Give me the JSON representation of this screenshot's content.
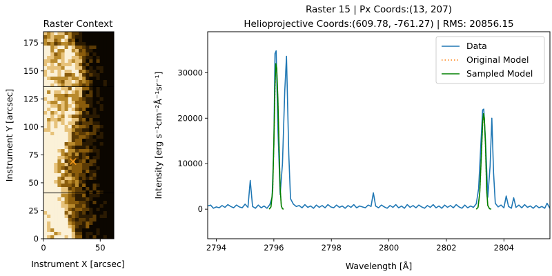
{
  "chart_data": [
    {
      "type": "heatmap",
      "title": "Raster Context",
      "xlabel": "Instrument X [arcsec]",
      "ylabel": "Instrument Y [arcsec]",
      "xlim": [
        0,
        62
      ],
      "ylim": [
        0,
        185
      ],
      "xticks": [
        0,
        50
      ],
      "yticks": [
        0,
        25,
        50,
        75,
        100,
        125,
        150,
        175
      ],
      "colormap": [
        "#0b0600",
        "#2a1a02",
        "#5a3a05",
        "#8a5c0c",
        "#b98a2c",
        "#e7c27a",
        "#fbf1d8"
      ],
      "marker": {
        "symbol": "x",
        "color": "#ff9f1c",
        "x": 26,
        "y": 69
      },
      "grid": false
    },
    {
      "type": "line",
      "title_lines": [
        "Raster 15 | Px Coords:(13, 207)",
        "Helioprojective Coords:(609.78, -761.27) | RMS: 20856.15"
      ],
      "xlabel": "Wavelength [Å]",
      "ylabel": "Intensity [erg s⁻¹cm⁻²Å⁻¹sr⁻¹]",
      "xlim": [
        2793.7,
        2805.6
      ],
      "ylim": [
        -6500,
        39000
      ],
      "xticks": [
        2794,
        2796,
        2798,
        2800,
        2802,
        2804
      ],
      "yticks": [
        0,
        10000,
        20000,
        30000
      ],
      "legend_position": "top-right",
      "grid": false,
      "series": [
        {
          "name": "Data",
          "color": "#1f77b4",
          "style": "solid",
          "points": [
            [
              2793.7,
              700
            ],
            [
              2793.8,
              900
            ],
            [
              2793.9,
              200
            ],
            [
              2794.0,
              500
            ],
            [
              2794.1,
              300
            ],
            [
              2794.2,
              800
            ],
            [
              2794.3,
              400
            ],
            [
              2794.4,
              1000
            ],
            [
              2794.5,
              600
            ],
            [
              2794.6,
              300
            ],
            [
              2794.7,
              900
            ],
            [
              2794.8,
              500
            ],
            [
              2794.9,
              300
            ],
            [
              2795.0,
              1100
            ],
            [
              2795.1,
              400
            ],
            [
              2795.18,
              6300
            ],
            [
              2795.26,
              600
            ],
            [
              2795.36,
              200
            ],
            [
              2795.46,
              900
            ],
            [
              2795.56,
              300
            ],
            [
              2795.66,
              700
            ],
            [
              2795.76,
              200
            ],
            [
              2795.86,
              1000
            ],
            [
              2795.94,
              2600
            ],
            [
              2796.0,
              14000
            ],
            [
              2796.04,
              34200
            ],
            [
              2796.08,
              34800
            ],
            [
              2796.14,
              18000
            ],
            [
              2796.22,
              3200
            ],
            [
              2796.3,
              10000
            ],
            [
              2796.38,
              26000
            ],
            [
              2796.44,
              33600
            ],
            [
              2796.52,
              12000
            ],
            [
              2796.58,
              2300
            ],
            [
              2796.68,
              1100
            ],
            [
              2796.78,
              600
            ],
            [
              2796.88,
              800
            ],
            [
              2796.98,
              300
            ],
            [
              2797.08,
              1000
            ],
            [
              2797.18,
              400
            ],
            [
              2797.28,
              700
            ],
            [
              2797.38,
              200
            ],
            [
              2797.48,
              900
            ],
            [
              2797.58,
              400
            ],
            [
              2797.68,
              800
            ],
            [
              2797.78,
              300
            ],
            [
              2797.88,
              1000
            ],
            [
              2797.98,
              500
            ],
            [
              2798.08,
              300
            ],
            [
              2798.18,
              900
            ],
            [
              2798.28,
              400
            ],
            [
              2798.38,
              700
            ],
            [
              2798.48,
              200
            ],
            [
              2798.58,
              800
            ],
            [
              2798.68,
              400
            ],
            [
              2798.78,
              1000
            ],
            [
              2798.88,
              300
            ],
            [
              2798.98,
              700
            ],
            [
              2799.08,
              500
            ],
            [
              2799.18,
              300
            ],
            [
              2799.28,
              900
            ],
            [
              2799.38,
              600
            ],
            [
              2799.46,
              3600
            ],
            [
              2799.54,
              700
            ],
            [
              2799.64,
              300
            ],
            [
              2799.74,
              900
            ],
            [
              2799.84,
              500
            ],
            [
              2799.94,
              200
            ],
            [
              2800.04,
              800
            ],
            [
              2800.14,
              400
            ],
            [
              2800.24,
              1000
            ],
            [
              2800.34,
              300
            ],
            [
              2800.44,
              700
            ],
            [
              2800.54,
              200
            ],
            [
              2800.64,
              1000
            ],
            [
              2800.74,
              400
            ],
            [
              2800.84,
              800
            ],
            [
              2800.94,
              300
            ],
            [
              2801.04,
              900
            ],
            [
              2801.14,
              500
            ],
            [
              2801.24,
              200
            ],
            [
              2801.34,
              800
            ],
            [
              2801.44,
              400
            ],
            [
              2801.54,
              1000
            ],
            [
              2801.64,
              300
            ],
            [
              2801.74,
              700
            ],
            [
              2801.84,
              200
            ],
            [
              2801.94,
              900
            ],
            [
              2802.04,
              400
            ],
            [
              2802.14,
              800
            ],
            [
              2802.24,
              300
            ],
            [
              2802.34,
              1000
            ],
            [
              2802.44,
              500
            ],
            [
              2802.54,
              200
            ],
            [
              2802.64,
              900
            ],
            [
              2802.74,
              300
            ],
            [
              2802.84,
              700
            ],
            [
              2802.94,
              400
            ],
            [
              2803.04,
              1200
            ],
            [
              2803.12,
              4500
            ],
            [
              2803.2,
              14500
            ],
            [
              2803.26,
              21800
            ],
            [
              2803.3,
              22000
            ],
            [
              2803.36,
              15000
            ],
            [
              2803.44,
              2600
            ],
            [
              2803.52,
              9500
            ],
            [
              2803.58,
              20000
            ],
            [
              2803.64,
              8000
            ],
            [
              2803.7,
              1300
            ],
            [
              2803.8,
              500
            ],
            [
              2803.9,
              900
            ],
            [
              2804.0,
              300
            ],
            [
              2804.08,
              2900
            ],
            [
              2804.16,
              600
            ],
            [
              2804.26,
              200
            ],
            [
              2804.34,
              2500
            ],
            [
              2804.42,
              400
            ],
            [
              2804.52,
              900
            ],
            [
              2804.62,
              300
            ],
            [
              2804.72,
              1000
            ],
            [
              2804.82,
              400
            ],
            [
              2804.92,
              700
            ],
            [
              2805.02,
              200
            ],
            [
              2805.12,
              800
            ],
            [
              2805.22,
              300
            ],
            [
              2805.32,
              600
            ],
            [
              2805.42,
              200
            ],
            [
              2805.5,
              1300
            ],
            [
              2805.6,
              200
            ]
          ]
        },
        {
          "name": "Original Model",
          "color": "#ff7f0e",
          "style": "dotted",
          "points": [
            [
              2795.84,
              0
            ],
            [
              2795.9,
              500
            ],
            [
              2795.96,
              4000
            ],
            [
              2796.0,
              14000
            ],
            [
              2796.04,
              26000
            ],
            [
              2796.07,
              31000
            ],
            [
              2796.1,
              30500
            ],
            [
              2796.14,
              24000
            ],
            [
              2796.18,
              14000
            ],
            [
              2796.22,
              4500
            ],
            [
              2796.26,
              700
            ],
            [
              2796.3,
              100
            ],
            [
              2796.34,
              0
            ],
            [
              2803.04,
              0
            ],
            [
              2803.1,
              400
            ],
            [
              2803.16,
              3500
            ],
            [
              2803.22,
              12000
            ],
            [
              2803.26,
              18500
            ],
            [
              2803.29,
              20500
            ],
            [
              2803.32,
              19500
            ],
            [
              2803.36,
              13500
            ],
            [
              2803.4,
              4000
            ],
            [
              2803.44,
              800
            ],
            [
              2803.5,
              100
            ],
            [
              2803.56,
              0
            ]
          ]
        },
        {
          "name": "Sampled Model",
          "color": "#008000",
          "style": "solid",
          "points": [
            [
              2795.84,
              0
            ],
            [
              2795.9,
              500
            ],
            [
              2795.96,
              4200
            ],
            [
              2796.0,
              14500
            ],
            [
              2796.04,
              27000
            ],
            [
              2796.07,
              32000
            ],
            [
              2796.1,
              31000
            ],
            [
              2796.14,
              24500
            ],
            [
              2796.18,
              14200
            ],
            [
              2796.22,
              4600
            ],
            [
              2796.26,
              700
            ],
            [
              2796.3,
              100
            ],
            [
              2796.34,
              0
            ],
            [
              2803.04,
              0
            ],
            [
              2803.1,
              400
            ],
            [
              2803.16,
              3600
            ],
            [
              2803.22,
              12500
            ],
            [
              2803.26,
              19000
            ],
            [
              2803.29,
              21000
            ],
            [
              2803.32,
              20000
            ],
            [
              2803.36,
              14000
            ],
            [
              2803.4,
              4200
            ],
            [
              2803.44,
              800
            ],
            [
              2803.5,
              100
            ],
            [
              2803.56,
              0
            ]
          ]
        }
      ]
    }
  ]
}
